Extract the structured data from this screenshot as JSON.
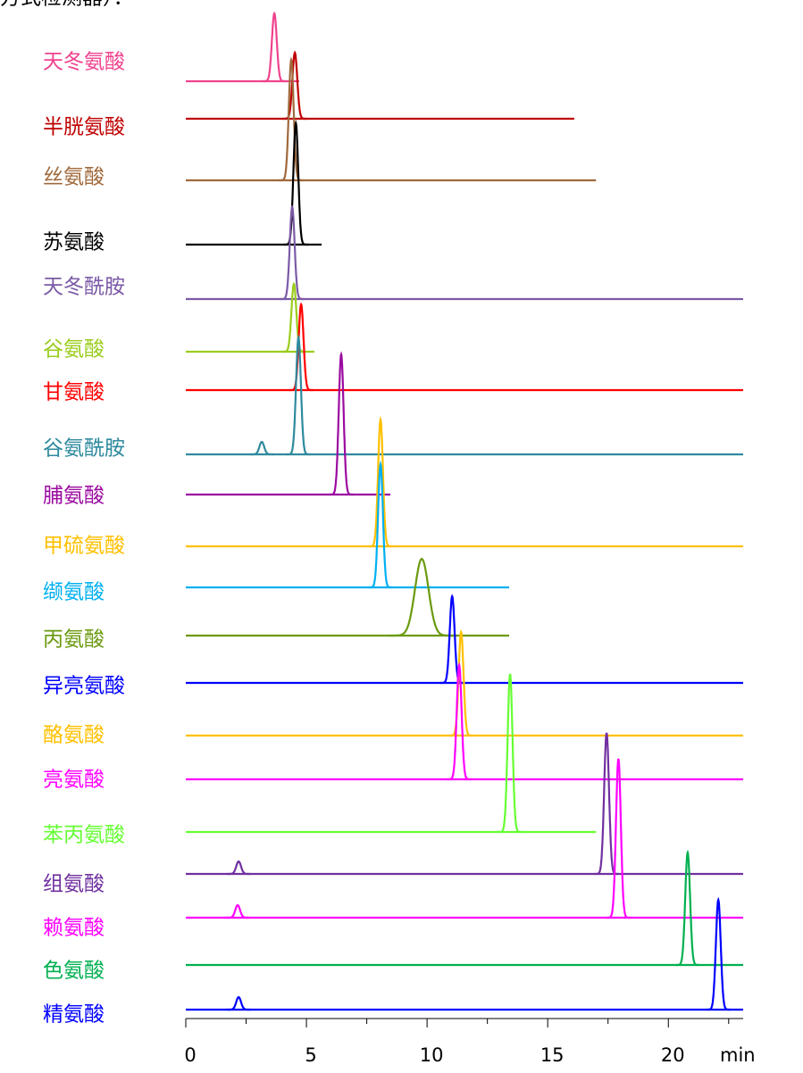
{
  "chart_data": {
    "type": "chromatogram",
    "header_fragment": "方式检测器）：",
    "x_label": "min",
    "xlim": [
      0,
      23.1
    ],
    "xticks": [
      0,
      5,
      10,
      15,
      20
    ],
    "minor_xticks": [
      2.5,
      7.5,
      12.5,
      17.5,
      22.5
    ],
    "series": [
      {
        "name": "天冬氨酸",
        "color": "#f0438e",
        "peaks": [
          3.67
        ],
        "end": 4.7
      },
      {
        "name": "半胱氨酸",
        "color": "#c00000",
        "peaks": [
          4.52
        ],
        "end": 16.1
      },
      {
        "name": "丝氨酸",
        "color": "#a0693c",
        "peaks": [
          4.37
        ],
        "end": 17.0
      },
      {
        "name": "苏氨酸",
        "color": "#000000",
        "peaks": [
          4.56
        ],
        "end": 5.63
      },
      {
        "name": "天冬酰胺",
        "color": "#7b5aa6",
        "peaks": [
          4.41
        ],
        "end": 23.1
      },
      {
        "name": "谷氨酸",
        "color": "#9acd1c",
        "peaks": [
          4.48
        ],
        "end": 5.33
      },
      {
        "name": "甘氨酸",
        "color": "#ff0000",
        "peaks": [
          4.78
        ],
        "end": 23.1
      },
      {
        "name": "谷氨酰胺",
        "color": "#2e8a9e",
        "peaks": [
          4.67,
          3.15
        ],
        "end": 23.1
      },
      {
        "name": "脯氨酸",
        "color": "#9b0aa0",
        "peaks": [
          6.44
        ],
        "end": 8.48
      },
      {
        "name": "甲硫氨酸",
        "color": "#ffc000",
        "peaks": [
          8.07
        ],
        "end": 23.1
      },
      {
        "name": "缬氨酸",
        "color": "#00b0f0",
        "peaks": [
          8.07
        ],
        "end": 13.4
      },
      {
        "name": "丙氨酸",
        "color": "#6b9a0f",
        "peaks": [
          9.78
        ],
        "end": 13.4
      },
      {
        "name": "异亮氨酸",
        "color": "#0000ff",
        "peaks": [
          11.04
        ],
        "end": 23.1
      },
      {
        "name": "酪氨酸",
        "color": "#ffc000",
        "peaks": [
          11.41
        ],
        "end": 23.1
      },
      {
        "name": "亮氨酸",
        "color": "#ff00ff",
        "peaks": [
          11.33
        ],
        "end": 23.1
      },
      {
        "name": "苯丙氨酸",
        "color": "#66ff33",
        "peaks": [
          13.44
        ],
        "end": 17.0
      },
      {
        "name": "组氨酸",
        "color": "#7030a0",
        "peaks": [
          17.44,
          2.19
        ],
        "end": 23.1
      },
      {
        "name": "赖氨酸",
        "color": "#ff00ff",
        "peaks": [
          17.93,
          2.15
        ],
        "end": 23.1
      },
      {
        "name": "色氨酸",
        "color": "#00b050",
        "peaks": [
          20.8
        ],
        "end": 23.1
      },
      {
        "name": "精氨酸",
        "color": "#0000ff",
        "peaks": [
          22.07,
          2.19
        ],
        "end": 23.1
      }
    ]
  }
}
